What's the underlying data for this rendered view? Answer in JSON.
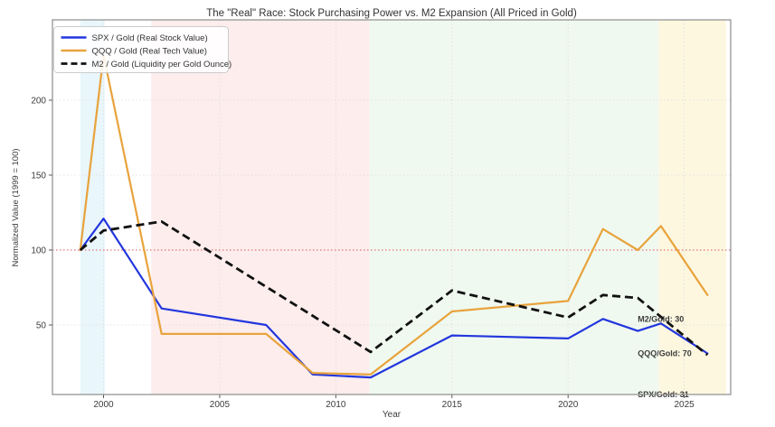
{
  "chart_data": {
    "type": "line",
    "title": "The \"Real\" Race: Stock Purchasing Power vs. M2 Expansion (All Priced in Gold)",
    "xlabel": "Year",
    "ylabel": "Normalized Value (1999 = 100)",
    "xlim": [
      1997.8,
      2027.0
    ],
    "ylim": [
      3.6,
      253.6
    ],
    "x_ticks": [
      2000,
      2005,
      2010,
      2015,
      2020,
      2025
    ],
    "y_ticks": [
      50,
      100,
      150,
      200
    ],
    "grid": "dotted light gray on both axes",
    "legend_position": "upper left",
    "reference_line": {
      "y": 100,
      "color": "#dd5555",
      "style": "dotted"
    },
    "background_bands": [
      {
        "name": "dotcom-era",
        "from": 1999.0,
        "to": 2000.05,
        "color": "#e9f6fb"
      },
      {
        "name": "gold-bull-era",
        "from": 2002.05,
        "to": 2011.45,
        "color": "#fdeded"
      },
      {
        "name": "stock-era",
        "from": 2011.45,
        "to": 2023.9,
        "color": "#f0f9f0"
      },
      {
        "name": "new-gold-era",
        "from": 2023.9,
        "to": 2026.8,
        "color": "#fdf7e0"
      }
    ],
    "series": [
      {
        "name": "SPX / Gold (Real Stock Value)",
        "id": "spx-gold",
        "color": "#2236dd",
        "style": "solid",
        "x": [
          1999,
          2000,
          2002.5,
          2007,
          2009,
          2011.5,
          2015,
          2020,
          2021.5,
          2023,
          2024,
          2026
        ],
        "y": [
          100,
          121,
          61,
          50,
          17,
          15,
          43,
          41,
          54,
          46,
          51,
          31
        ]
      },
      {
        "name": "QQQ / Gold (Real Tech Value)",
        "id": "qqq-gold",
        "color": "#e8a33c",
        "style": "solid",
        "x": [
          1999,
          2000,
          2002.5,
          2007,
          2009,
          2011.5,
          2015,
          2020,
          2021.5,
          2023,
          2024,
          2026
        ],
        "y": [
          100,
          230,
          44,
          44,
          18,
          17,
          59,
          66,
          114,
          100,
          116,
          70
        ]
      },
      {
        "name": "M2 / Gold (Liquidity per Gold Ounce)",
        "id": "m2-gold",
        "color": "#111111",
        "style": "dashed",
        "x": [
          1999,
          2000,
          2002.5,
          2011.5,
          2015,
          2020,
          2021.5,
          2023,
          2026
        ],
        "y": [
          100,
          113,
          119,
          32,
          73,
          55,
          70,
          68,
          30
        ]
      }
    ],
    "annotations": [
      {
        "id": "m2-final",
        "text": "M2/Gold: 30",
        "x": 2023.0,
        "y": 54,
        "color": "#222222"
      },
      {
        "id": "qqq-final",
        "text": "QQQ/Gold: 70",
        "x": 2023.0,
        "y": 31,
        "color": "#e8a33c"
      },
      {
        "id": "spx-final",
        "text": "SPX/Gold: 31",
        "x": 2023.0,
        "y": 3.6,
        "color": "#2236dd"
      }
    ]
  }
}
